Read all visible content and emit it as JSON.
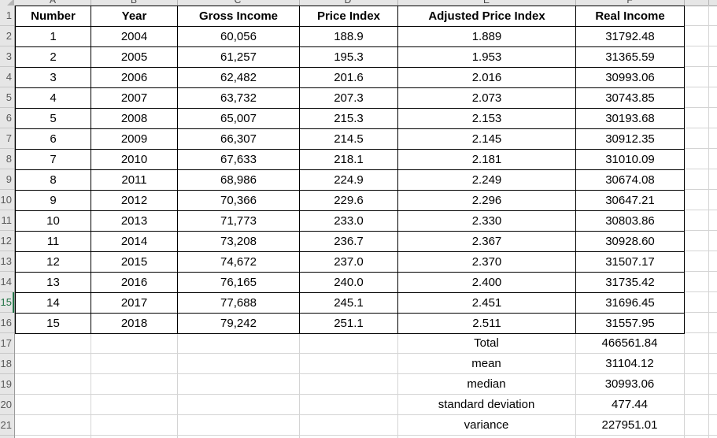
{
  "sheet": {
    "column_letters": [
      "A",
      "B",
      "C",
      "D",
      "E",
      "F"
    ],
    "row_numbers": [
      1,
      2,
      3,
      4,
      5,
      6,
      7,
      8,
      9,
      10,
      11,
      12,
      13,
      14,
      15,
      16,
      17,
      18,
      19,
      20,
      21
    ],
    "selected_row": 15,
    "selection_color": "#217346"
  },
  "table": {
    "headers": [
      "Number",
      "Year",
      "Gross Income",
      "Price Index",
      "Adjusted Price Index",
      "Real Income"
    ],
    "rows": [
      [
        "1",
        "2004",
        "60,056",
        "188.9",
        "1.889",
        "31792.48"
      ],
      [
        "2",
        "2005",
        "61,257",
        "195.3",
        "1.953",
        "31365.59"
      ],
      [
        "3",
        "2006",
        "62,482",
        "201.6",
        "2.016",
        "30993.06"
      ],
      [
        "4",
        "2007",
        "63,732",
        "207.3",
        "2.073",
        "30743.85"
      ],
      [
        "5",
        "2008",
        "65,007",
        "215.3",
        "2.153",
        "30193.68"
      ],
      [
        "6",
        "2009",
        "66,307",
        "214.5",
        "2.145",
        "30912.35"
      ],
      [
        "7",
        "2010",
        "67,633",
        "218.1",
        "2.181",
        "31010.09"
      ],
      [
        "8",
        "2011",
        "68,986",
        "224.9",
        "2.249",
        "30674.08"
      ],
      [
        "9",
        "2012",
        "70,366",
        "229.6",
        "2.296",
        "30647.21"
      ],
      [
        "10",
        "2013",
        "71,773",
        "233.0",
        "2.330",
        "30803.86"
      ],
      [
        "11",
        "2014",
        "73,208",
        "236.7",
        "2.367",
        "30928.60"
      ],
      [
        "12",
        "2015",
        "74,672",
        "237.0",
        "2.370",
        "31507.17"
      ],
      [
        "13",
        "2016",
        "76,165",
        "240.0",
        "2.400",
        "31735.42"
      ],
      [
        "14",
        "2017",
        "77,688",
        "245.1",
        "2.451",
        "31696.45"
      ],
      [
        "15",
        "2018",
        "79,242",
        "251.1",
        "2.511",
        "31557.95"
      ]
    ],
    "summary": [
      {
        "label": "Total",
        "value": "466561.84"
      },
      {
        "label": "mean",
        "value": "31104.12"
      },
      {
        "label": "median",
        "value": "30993.06"
      },
      {
        "label": "standard deviation",
        "value": "477.44"
      },
      {
        "label": "variance",
        "value": "227951.01"
      }
    ]
  }
}
